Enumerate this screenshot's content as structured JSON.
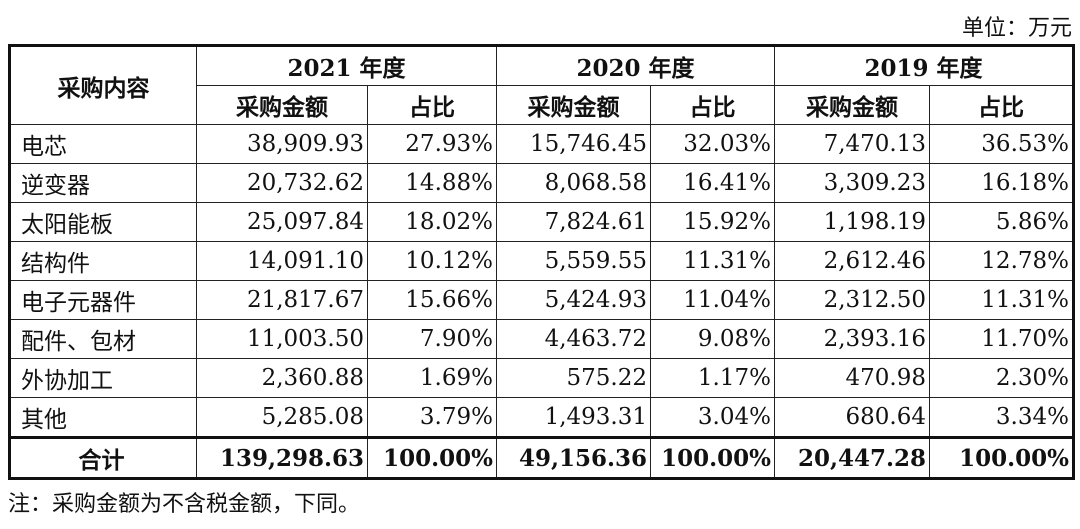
{
  "unit_label": "单位：万元",
  "header": {
    "row_header": "采购内容",
    "years": [
      "2021 年度",
      "2020 年度",
      "2019 年度"
    ],
    "amount_label": "采购金额",
    "ratio_label": "占比"
  },
  "rows": [
    {
      "name": "电芯",
      "cells": [
        "38,909.93",
        "27.93%",
        "15,746.45",
        "32.03%",
        "7,470.13",
        "36.53%"
      ]
    },
    {
      "name": "逆变器",
      "cells": [
        "20,732.62",
        "14.88%",
        "8,068.58",
        "16.41%",
        "3,309.23",
        "16.18%"
      ]
    },
    {
      "name": "太阳能板",
      "cells": [
        "25,097.84",
        "18.02%",
        "7,824.61",
        "15.92%",
        "1,198.19",
        "5.86%"
      ]
    },
    {
      "name": "结构件",
      "cells": [
        "14,091.10",
        "10.12%",
        "5,559.55",
        "11.31%",
        "2,612.46",
        "12.78%"
      ]
    },
    {
      "name": "电子元器件",
      "cells": [
        "21,817.67",
        "15.66%",
        "5,424.93",
        "11.04%",
        "2,312.50",
        "11.31%"
      ]
    },
    {
      "name": "配件、包材",
      "cells": [
        "11,003.50",
        "7.90%",
        "4,463.72",
        "9.08%",
        "2,393.16",
        "11.70%"
      ]
    },
    {
      "name": "外协加工",
      "cells": [
        "2,360.88",
        "1.69%",
        "575.22",
        "1.17%",
        "470.98",
        "2.30%"
      ]
    },
    {
      "name": "其他",
      "cells": [
        "5,285.08",
        "3.79%",
        "1,493.31",
        "3.04%",
        "680.64",
        "3.34%"
      ]
    }
  ],
  "total": {
    "name": "合计",
    "cells": [
      "139,298.63",
      "100.00%",
      "49,156.36",
      "100.00%",
      "20,447.28",
      "100.00%"
    ]
  },
  "note": "注：采购金额为不含税金额，下同。"
}
